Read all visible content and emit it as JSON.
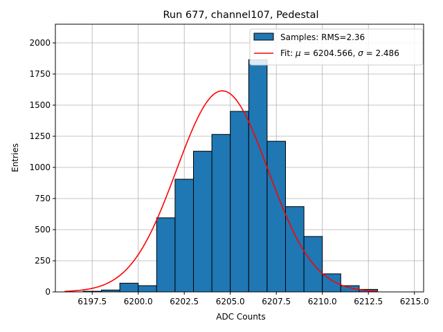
{
  "chart_data": {
    "type": "bar",
    "title": "Run 677, channel107, Pedestal",
    "xlabel": "ADC Counts",
    "ylabel": "Entries",
    "xlim": [
      6195.5,
      6215.5
    ],
    "ylim": [
      0,
      2150
    ],
    "xticks": [
      6197.5,
      6200.0,
      6202.5,
      6205.0,
      6207.5,
      6210.0,
      6212.5,
      6215.0
    ],
    "xtick_labels": [
      "6197.5",
      "6200.0",
      "6202.5",
      "6205.0",
      "6207.5",
      "6210.0",
      "6212.5",
      "6215.0"
    ],
    "yticks": [
      0,
      250,
      500,
      750,
      1000,
      1250,
      1500,
      1750,
      2000
    ],
    "ytick_labels": [
      "0",
      "250",
      "500",
      "750",
      "1000",
      "1250",
      "1500",
      "1750",
      "2000"
    ],
    "grid": true,
    "legend_position": "top-right",
    "histogram": {
      "name": "Samples: RMS=2.36",
      "color": "#1f77b4",
      "edgecolor": "#000000",
      "bin_edges": [
        6197,
        6198,
        6199,
        6200,
        6201,
        6202,
        6203,
        6204,
        6205,
        6206,
        6207,
        6208,
        6209,
        6210,
        6211,
        6212,
        6213
      ],
      "counts": [
        5,
        15,
        70,
        50,
        595,
        905,
        1130,
        1265,
        1450,
        1865,
        1210,
        685,
        445,
        145,
        50,
        20
      ]
    },
    "fit": {
      "legend_prefix": "Fit: ",
      "mu_symbol": "μ",
      "mu_value": "6204.566",
      "sigma_symbol": "σ",
      "sigma_value": "2.486",
      "color": "#ff0000",
      "mu": 6204.566,
      "sigma": 2.486,
      "amplitude": 1615,
      "x_range": [
        6196,
        6213
      ]
    }
  }
}
